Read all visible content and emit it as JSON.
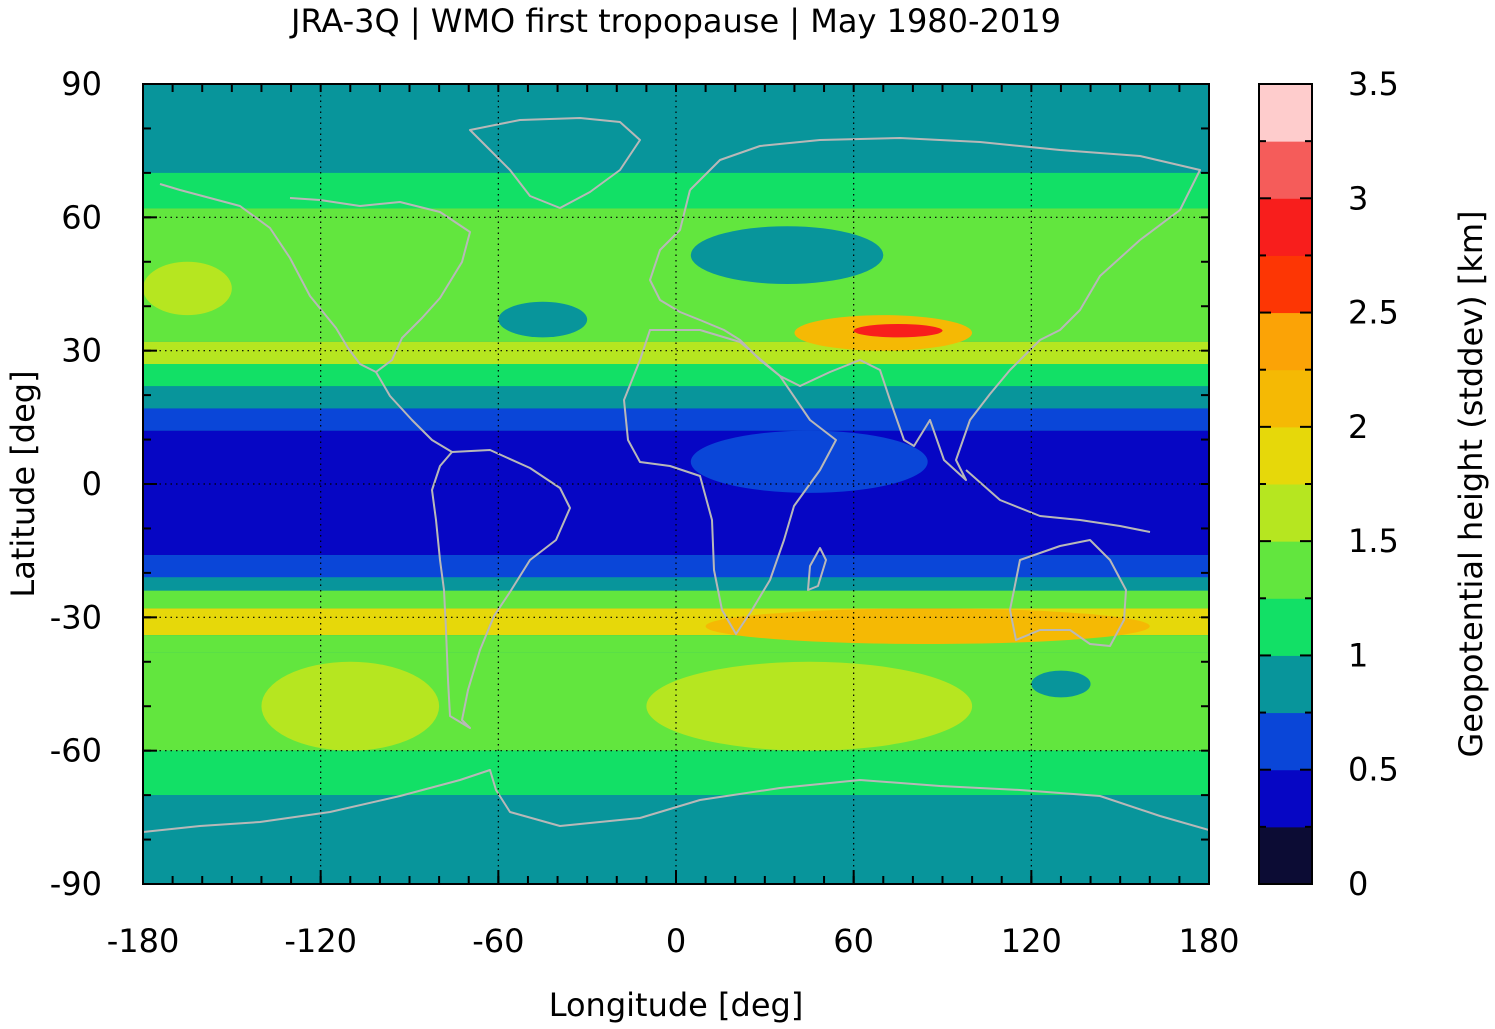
{
  "chart_data": {
    "type": "heatmap",
    "title": "JRA-3Q | WMO first tropopause | May 1980-2019",
    "xlabel": "Longitude [deg]",
    "ylabel": "Latitude [deg]",
    "xlim": [
      -180,
      180
    ],
    "ylim": [
      -90,
      90
    ],
    "xticks": [
      "-180",
      "-120",
      "-60",
      "0",
      "60",
      "120",
      "180"
    ],
    "xtick_values": [
      -180,
      -120,
      -60,
      0,
      60,
      120,
      180
    ],
    "yticks": [
      "90",
      "60",
      "30",
      "0",
      "-30",
      "-60",
      "-90"
    ],
    "ytick_values": [
      90,
      60,
      30,
      0,
      -30,
      -60,
      -90
    ],
    "grid": true,
    "colorbar": {
      "label": "Geopotential height (stddev) [km]",
      "ticks": [
        "3.5",
        "3",
        "2.5",
        "2",
        "1.5",
        "1",
        "0.5",
        "0"
      ],
      "tick_values": [
        3.5,
        3,
        2.5,
        2,
        1.5,
        1,
        0.5,
        0
      ],
      "range": [
        0,
        3.5
      ],
      "step": 0.25,
      "colors": [
        "#0c0c34",
        "#0606c4",
        "#0a46d8",
        "#08959b",
        "#12e066",
        "#62e63e",
        "#b6e620",
        "#e6d80a",
        "#f5b904",
        "#fba306",
        "#fd3604",
        "#f81e1c",
        "#f55c5a",
        "#fecccc"
      ]
    },
    "zonal_band_values": [
      {
        "lat_range": [
          70,
          90
        ],
        "value": 0.85
      },
      {
        "lat_range": [
          62,
          70
        ],
        "value": 1.1
      },
      {
        "lat_range": [
          45,
          62
        ],
        "value": 1.3
      },
      {
        "lat_range": [
          32,
          45
        ],
        "value": 1.3
      },
      {
        "lat_range": [
          27,
          32
        ],
        "value": 1.6
      },
      {
        "lat_range": [
          22,
          27
        ],
        "value": 1.1
      },
      {
        "lat_range": [
          17,
          22
        ],
        "value": 0.85
      },
      {
        "lat_range": [
          12,
          17
        ],
        "value": 0.6
      },
      {
        "lat_range": [
          -16,
          12
        ],
        "value": 0.4
      },
      {
        "lat_range": [
          -21,
          -16
        ],
        "value": 0.6
      },
      {
        "lat_range": [
          -24,
          -21
        ],
        "value": 0.85
      },
      {
        "lat_range": [
          -28,
          -24
        ],
        "value": 1.3
      },
      {
        "lat_range": [
          -34,
          -28
        ],
        "value": 1.8
      },
      {
        "lat_range": [
          -38,
          -34
        ],
        "value": 1.3
      },
      {
        "lat_range": [
          -60,
          -38
        ],
        "value": 1.3
      },
      {
        "lat_range": [
          -70,
          -60
        ],
        "value": 1.1
      },
      {
        "lat_range": [
          -90,
          -70
        ],
        "value": 0.85
      }
    ],
    "features": [
      {
        "lon_range": [
          40,
          100
        ],
        "lat_range": [
          30,
          38
        ],
        "value": 2.2
      },
      {
        "lon_range": [
          60,
          90
        ],
        "lat_range": [
          33,
          36
        ],
        "value": 2.9
      },
      {
        "lon_range": [
          5,
          85
        ],
        "lat_range": [
          -2,
          12
        ],
        "value": 0.6
      },
      {
        "lon_range": [
          5,
          70
        ],
        "lat_range": [
          45,
          58
        ],
        "value": 0.85
      },
      {
        "lon_range": [
          -60,
          -30
        ],
        "lat_range": [
          33,
          41
        ],
        "value": 0.85
      },
      {
        "lon_range": [
          10,
          160
        ],
        "lat_range": [
          -36,
          -28
        ],
        "value": 2.0
      },
      {
        "lon_range": [
          120,
          140
        ],
        "lat_range": [
          -48,
          -42
        ],
        "value": 0.85
      },
      {
        "lon_range": [
          -180,
          -150
        ],
        "lat_range": [
          38,
          50
        ],
        "value": 1.6
      },
      {
        "lon_range": [
          -140,
          -80
        ],
        "lat_range": [
          -60,
          -40
        ],
        "value": 1.6
      },
      {
        "lon_range": [
          -10,
          100
        ],
        "lat_range": [
          -60,
          -40
        ],
        "value": 1.6
      }
    ]
  }
}
